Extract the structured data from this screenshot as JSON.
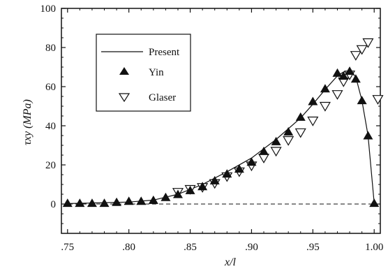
{
  "chart_data": {
    "type": "line",
    "title": "",
    "xlabel": "x/l",
    "ylabel": "τxy (MPa)",
    "xlim": [
      0.745,
      1.005
    ],
    "ylim": [
      -15,
      100
    ],
    "xticks": [
      0.75,
      0.8,
      0.85,
      0.9,
      0.95,
      1.0
    ],
    "xtick_labels": [
      ".75",
      ".80",
      ".85",
      ".90",
      ".95",
      "1.00"
    ],
    "yticks": [
      0,
      20,
      40,
      60,
      80,
      100
    ],
    "ytick_labels": [
      "0",
      "20",
      "40",
      "60",
      "80",
      "100"
    ],
    "reference_line": {
      "y": 0,
      "style": "dashed"
    },
    "grid": false,
    "legend_position": "upper-left",
    "series": [
      {
        "name": "Present",
        "style": "line",
        "x": [
          0.75,
          0.8,
          0.82,
          0.84,
          0.86,
          0.88,
          0.9,
          0.92,
          0.94,
          0.95,
          0.96,
          0.97,
          0.975,
          0.98,
          0.985,
          0.99,
          0.995,
          1.0
        ],
        "y": [
          0.2,
          1.0,
          2.0,
          5.0,
          10.0,
          16.5,
          23.5,
          33.0,
          44.0,
          51.0,
          58.5,
          65.5,
          67.5,
          68.0,
          65.0,
          53.0,
          35.0,
          0.5
        ]
      },
      {
        "name": "Yin",
        "style": "filled-triangle",
        "x": [
          0.75,
          0.76,
          0.77,
          0.78,
          0.79,
          0.8,
          0.81,
          0.82,
          0.83,
          0.84,
          0.85,
          0.86,
          0.87,
          0.88,
          0.89,
          0.9,
          0.91,
          0.92,
          0.93,
          0.94,
          0.95,
          0.96,
          0.97,
          0.975,
          0.98,
          0.985,
          0.99,
          0.995,
          1.0
        ],
        "y": [
          0.5,
          0.5,
          0.5,
          0.5,
          1.0,
          1.5,
          1.5,
          2.0,
          3.5,
          5.0,
          7.0,
          9.0,
          12.0,
          15.5,
          18.0,
          21.5,
          27.0,
          32.0,
          37.0,
          44.5,
          52.5,
          59.0,
          67.0,
          65.5,
          68.0,
          64.0,
          53.0,
          35.0,
          0.5
        ]
      },
      {
        "name": "Glaser",
        "style": "open-inverted-triangle",
        "x": [
          0.84,
          0.85,
          0.86,
          0.87,
          0.88,
          0.89,
          0.9,
          0.91,
          0.92,
          0.93,
          0.94,
          0.95,
          0.96,
          0.97,
          0.975,
          0.98,
          0.985,
          0.99,
          0.995,
          1.003
        ],
        "y": [
          6.0,
          7.5,
          8.5,
          10.5,
          14.0,
          16.5,
          19.5,
          23.5,
          27.0,
          32.5,
          36.5,
          42.5,
          50.0,
          56.0,
          62.5,
          66.0,
          76.0,
          79.0,
          82.5,
          53.5
        ]
      }
    ]
  }
}
